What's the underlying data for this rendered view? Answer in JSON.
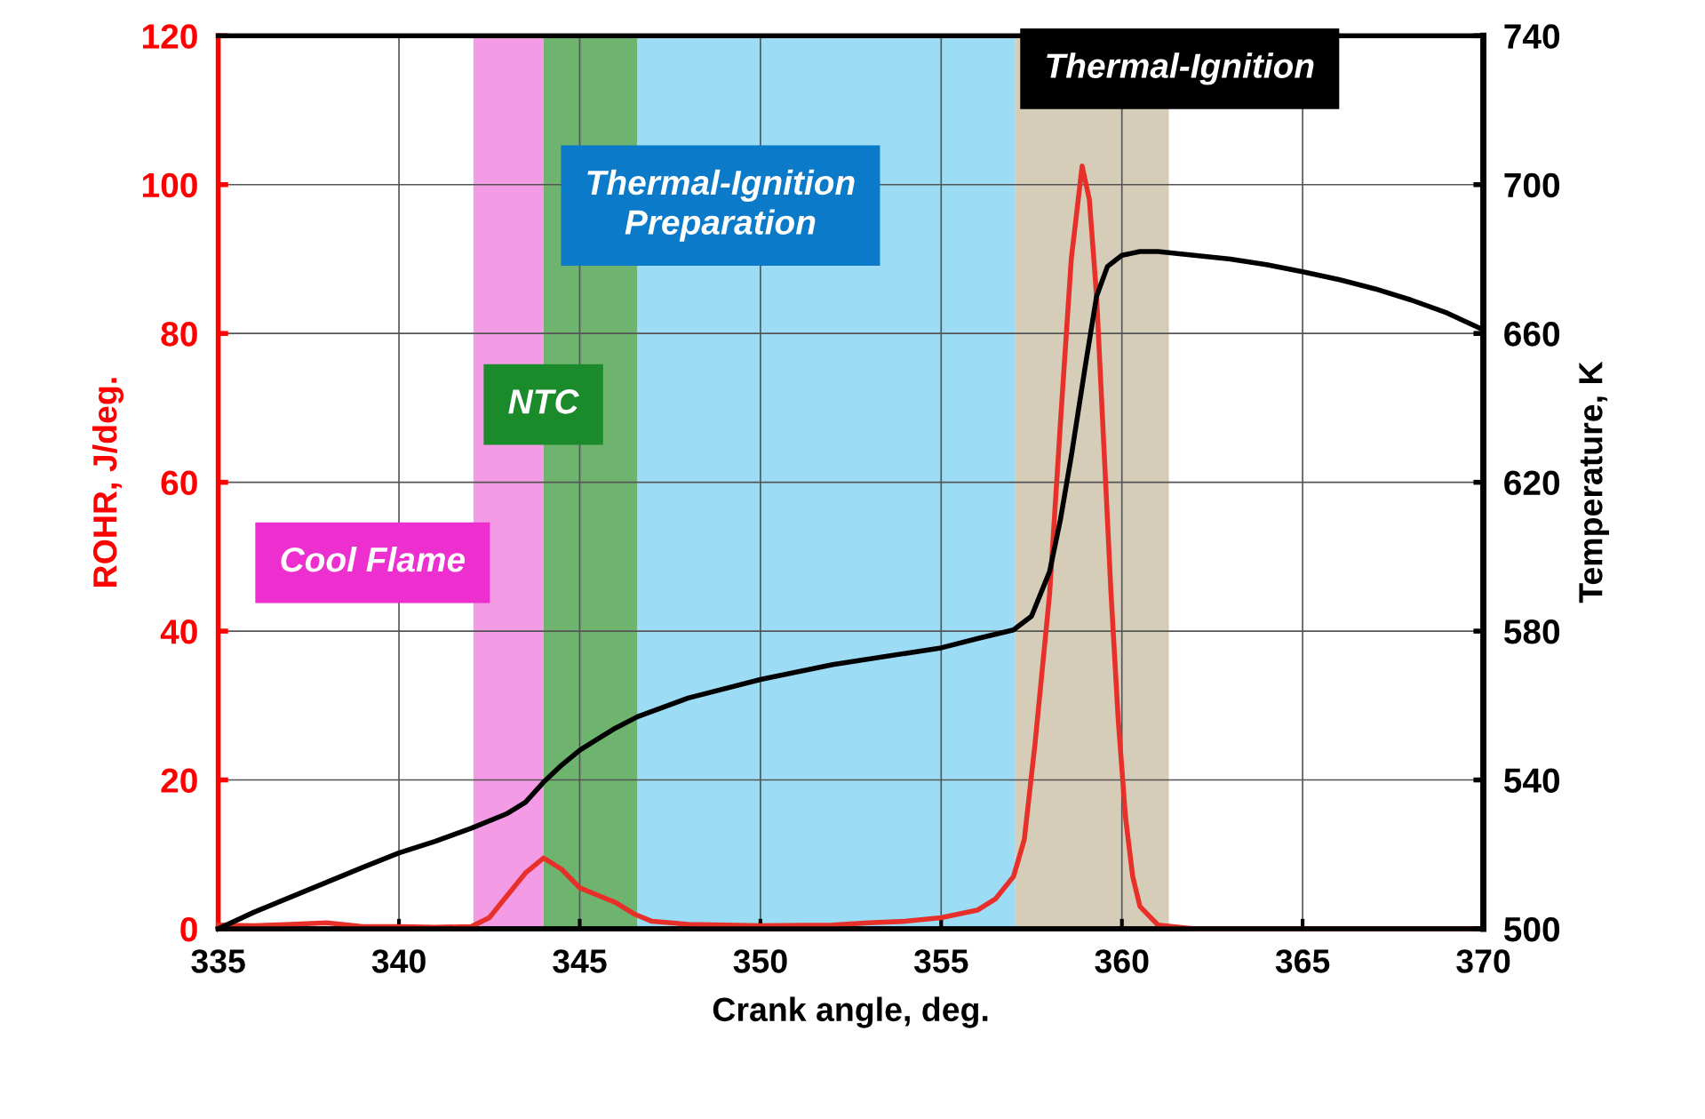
{
  "chart_data": {
    "type": "line",
    "xlabel": "Crank angle, deg.",
    "ylabel": "ROHR, J/deg.",
    "y2label": "Temperature, K",
    "xlim": [
      335,
      370
    ],
    "xticks": [
      335,
      340,
      345,
      350,
      355,
      360,
      365,
      370
    ],
    "ylim": [
      0,
      120
    ],
    "yticks": [
      0,
      20,
      40,
      60,
      80,
      100,
      120
    ],
    "y2lim": [
      500,
      740
    ],
    "y2ticks": [
      500,
      540,
      580,
      620,
      660,
      700,
      740
    ],
    "grid": true,
    "line_style": "solid",
    "marker": "none",
    "series": [
      {
        "color": "#e8302a",
        "x": [
          335,
          336,
          337,
          338,
          339,
          340,
          341,
          342,
          342.5,
          343,
          343.5,
          344,
          344.5,
          345,
          345.5,
          346,
          346.5,
          347,
          348,
          350,
          352,
          353,
          354,
          355,
          356,
          356.5,
          357,
          357.3,
          357.6,
          358,
          358.3,
          358.6,
          358.9,
          359.1,
          359.3,
          359.5,
          359.7,
          359.9,
          360.1,
          360.3,
          360.5,
          361,
          362,
          365,
          370
        ],
        "values": [
          0.5,
          0.4,
          0.6,
          0.8,
          0.3,
          0.3,
          0.2,
          0.3,
          1.5,
          4.5,
          7.5,
          9.5,
          8,
          5.5,
          4.5,
          3.5,
          2,
          1,
          0.6,
          0.4,
          0.5,
          0.8,
          1,
          1.5,
          2.5,
          4,
          7,
          12,
          25,
          45,
          68,
          90,
          102.5,
          98,
          85,
          65,
          45,
          28,
          15,
          7,
          3,
          0.5,
          0,
          0,
          0
        ]
      },
      {
        "color": "#000000",
        "axis": "y2",
        "x": [
          335,
          336,
          337,
          338,
          339,
          340,
          341,
          342,
          343,
          343.5,
          344,
          344.5,
          345,
          345.5,
          346,
          346.6,
          348,
          350,
          352,
          354,
          355,
          356,
          357,
          357.5,
          358,
          358.3,
          358.6,
          359,
          359.3,
          359.6,
          360,
          360.5,
          361,
          362,
          363,
          364,
          365,
          366,
          367,
          368,
          369,
          370
        ],
        "values": [
          500,
          504.5,
          508.5,
          512.5,
          516.5,
          520.4,
          523.5,
          527,
          531,
          534,
          539.4,
          544,
          548,
          551,
          554,
          557,
          562,
          567,
          571,
          574,
          575.5,
          578,
          580.3,
          584,
          596,
          610,
          627,
          652,
          670,
          678,
          681,
          682,
          682,
          681,
          680,
          678.5,
          676.6,
          674.5,
          672,
          669,
          665.5,
          661
        ]
      }
    ],
    "bands": [
      {
        "axis": "x",
        "from": 342.06,
        "to": 344.0,
        "label": "Cool Flame",
        "color": "#f49be6"
      },
      {
        "axis": "x",
        "from": 344.0,
        "to": 346.6,
        "label": "NTC",
        "color": "#6eb46e"
      },
      {
        "axis": "x",
        "from": 346.6,
        "to": 357.05,
        "label": "Thermal-Ignition Preparation",
        "color": "#9ddcf5"
      },
      {
        "axis": "x",
        "from": 357.05,
        "to": 361.3,
        "label": "Thermal-Ignition",
        "color": "#d6cdb8"
      }
    ]
  }
}
